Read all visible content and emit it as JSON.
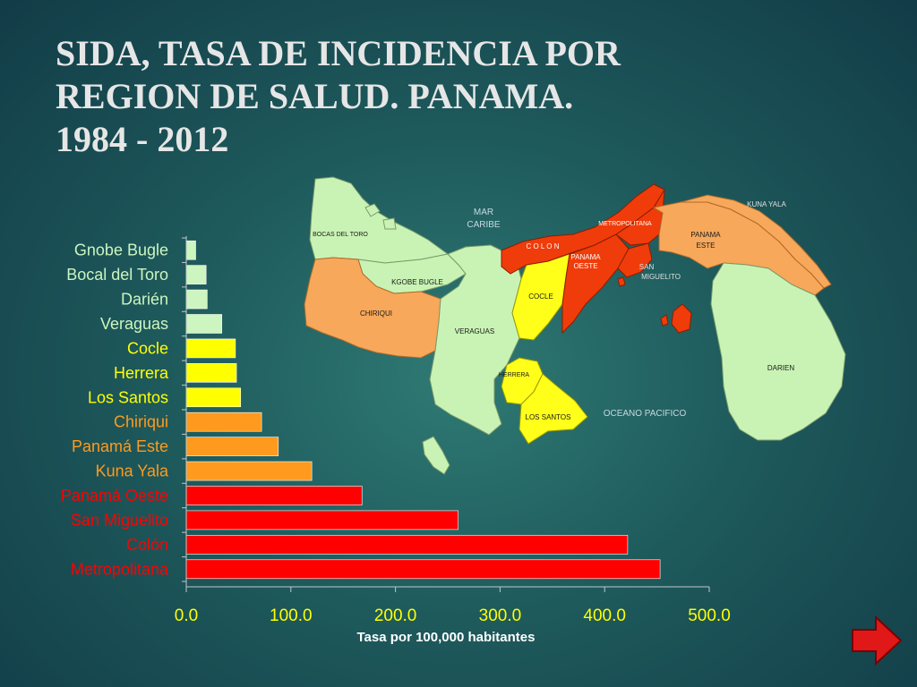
{
  "slide": {
    "title_lines": [
      "SIDA, TASA DE INCIDENCIA POR",
      "REGION DE SALUD. PANAMA.",
      "1984 - 2012"
    ]
  },
  "map": {
    "labels": {
      "mar_caribe": [
        "MAR",
        "CARIBE"
      ],
      "oceano_pacifico": "OCEANO PACIFICO",
      "bocas_del_toro": "BOCAS DEL TORO",
      "kgobe_bugle": "KGOBE BUGLE",
      "chiriqui": "CHIRIQUI",
      "veraguas": "VERAGUAS",
      "cocle": "COCLE",
      "colon": "C O L O N",
      "metropolitana": "METROPOLITANA",
      "panama_oeste": [
        "PANAMA",
        "OESTE"
      ],
      "san_miguelito": [
        "SAN",
        "MIGUELITO"
      ],
      "panama_este": [
        "PANAMA",
        "ESTE"
      ],
      "kuna_yala": "KUNA YALA",
      "darien": "DARIEN",
      "herrera": "HERRERA",
      "los_santos": "LOS SANTOS"
    }
  },
  "colors": {
    "green": "#ccf5bf",
    "yellow": "#ffff00",
    "orange": "#ff9a1e",
    "red": "#ff0000",
    "map_green": "#c9f3b5",
    "map_orange": "#f7a85a",
    "map_yellow": "#ffff1a",
    "map_red": "#f03c0a"
  },
  "chart_data": {
    "type": "bar",
    "orientation": "horizontal",
    "categories": [
      "Gnobe Bugle",
      "Bocal del Toro",
      "Darién",
      "Veraguas",
      "Cocle",
      "Herrera",
      "Los Santos",
      "Chiriqui",
      "Panamá Este",
      "Kuna Yala",
      "Panamá Oeste",
      "San Miguelito",
      "Colón",
      "Metropolitana"
    ],
    "values": [
      9,
      19,
      20,
      34,
      47,
      48,
      52,
      72,
      88,
      120,
      168,
      260,
      422,
      453
    ],
    "bar_colors": [
      "green",
      "green",
      "green",
      "green",
      "yellow",
      "yellow",
      "yellow",
      "orange",
      "orange",
      "orange",
      "red",
      "red",
      "red",
      "red"
    ],
    "xlabel": "Tasa por 100,000 habitantes",
    "xticks": [
      "0.0",
      "100.0",
      "200.0",
      "300.0",
      "400.0",
      "500.0"
    ],
    "xlim": [
      0,
      500
    ],
    "grid": false,
    "legend": "none"
  }
}
